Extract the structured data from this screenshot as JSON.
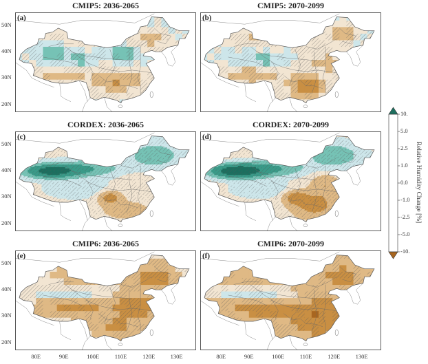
{
  "panels": [
    {
      "id": "a",
      "label": "(a)",
      "title": "CMIP5: 2036-2065",
      "model": "CMIP5",
      "period": "2036-2065"
    },
    {
      "id": "b",
      "label": "(b)",
      "title": "CMIP5: 2070-2099",
      "model": "CMIP5",
      "period": "2070-2099"
    },
    {
      "id": "c",
      "label": "(c)",
      "title": "CORDEX: 2036-2065",
      "model": "CORDEX",
      "period": "2036-2065"
    },
    {
      "id": "d",
      "label": "(d)",
      "title": "CORDEX: 2070-2099",
      "model": "CORDEX",
      "period": "2070-2099"
    },
    {
      "id": "e",
      "label": "(e)",
      "title": "CMIP6: 2036-2065",
      "model": "CMIP6",
      "period": "2036-2065"
    },
    {
      "id": "f",
      "label": "(f)",
      "title": "CMIP6: 2070-2099",
      "model": "CMIP6",
      "period": "2070-2099"
    }
  ],
  "lat_ticks": [
    "50N",
    "40N",
    "30N",
    "20N"
  ],
  "lon_ticks": [
    "80E",
    "90E",
    "100E",
    "110E",
    "120E",
    "130E"
  ],
  "colorbar": {
    "label": "Relative Humidity Change [%]",
    "ticks": [
      "10.",
      "5.0",
      "2.5",
      "1.0",
      "0.0",
      "-1.0",
      "-2.5",
      "-5.0",
      "-10."
    ],
    "colors": [
      "#1d6f5f",
      "#3a9a88",
      "#76c2b5",
      "#cde6ea",
      "#f2e5d2",
      "#dfb985",
      "#c98f43",
      "#a86620"
    ]
  }
}
